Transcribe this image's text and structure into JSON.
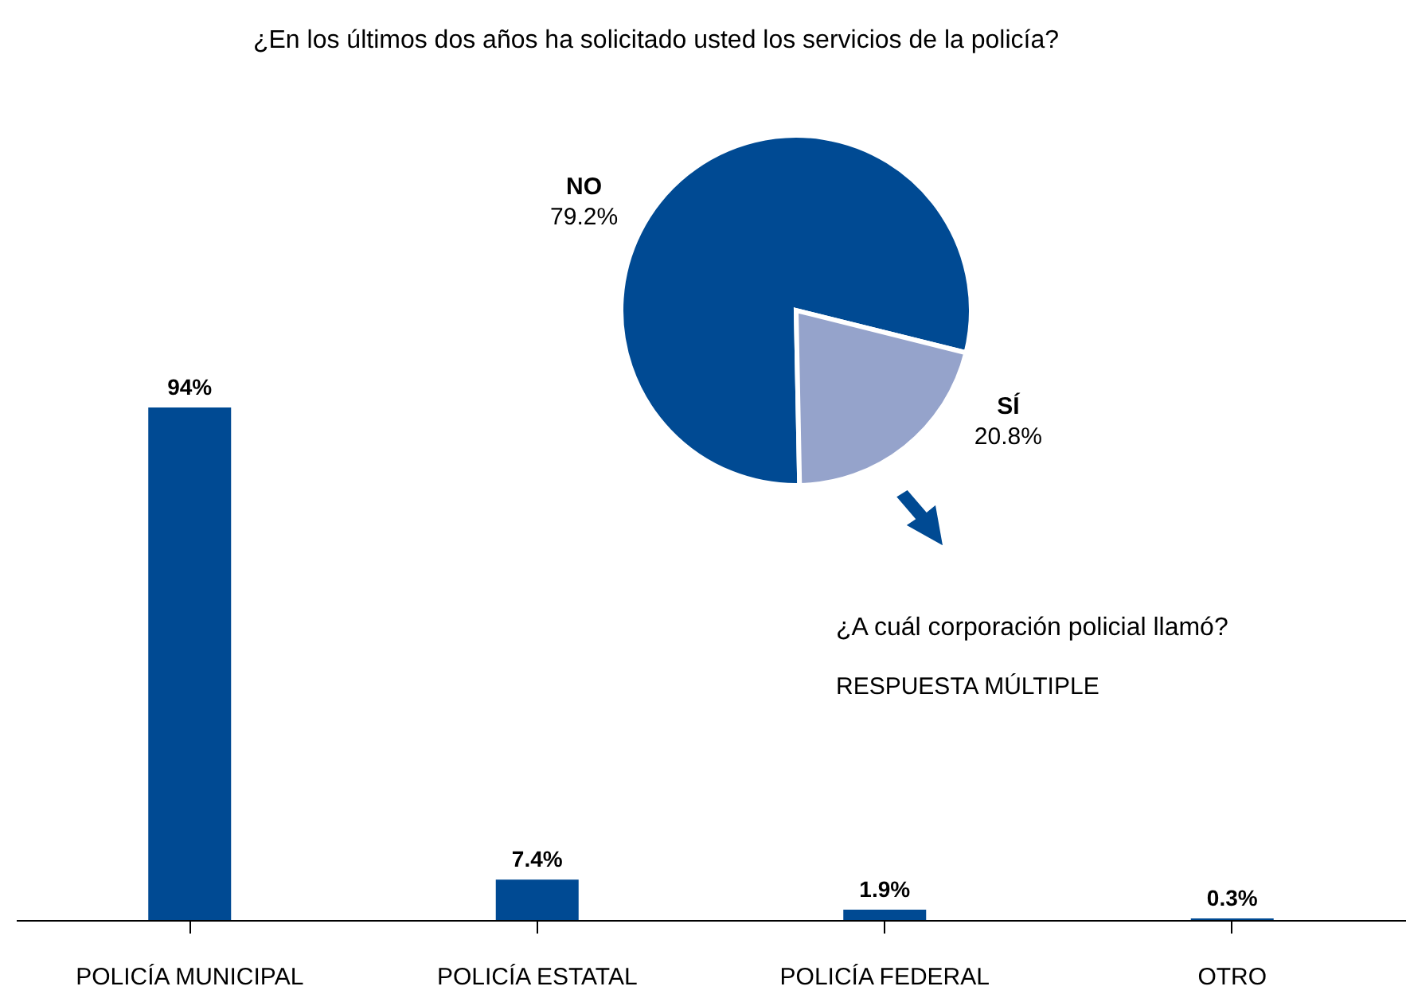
{
  "chart_data": [
    {
      "type": "pie",
      "title": "¿En los últimos dos años ha solicitado usted los servicios de la policía?",
      "categories": [
        "NO",
        "SÍ"
      ],
      "values": [
        79.2,
        20.8
      ],
      "colors": [
        "#004a93",
        "#95a3cb"
      ],
      "value_labels": [
        "79.2%",
        "20.8%"
      ]
    },
    {
      "type": "bar",
      "title": "¿A cuál corporación policial llamó?",
      "subtitle": "RESPUESTA MÚLTIPLE",
      "categories": [
        "POLICÍA MUNICIPAL",
        "POLICÍA ESTATAL",
        "POLICÍA FEDERAL",
        "OTRO"
      ],
      "values": [
        94,
        7.4,
        1.9,
        0.3
      ],
      "color": "#004a93",
      "value_labels": [
        "94%",
        "7.4%",
        "1.9%",
        "0.3%"
      ]
    }
  ]
}
